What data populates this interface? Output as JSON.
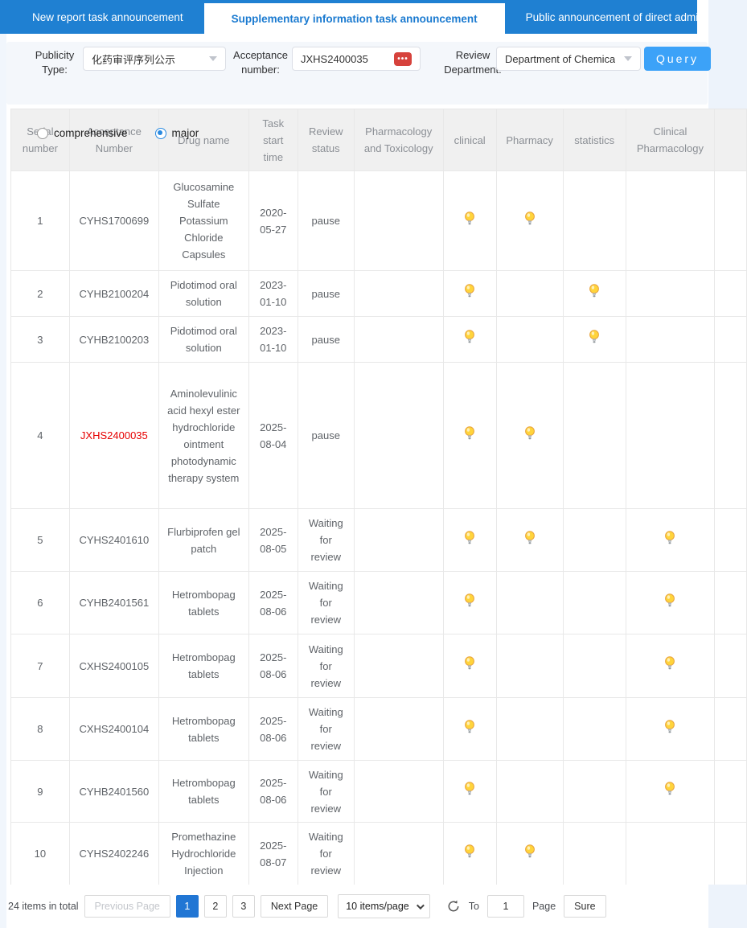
{
  "tabs": [
    {
      "label": "New report task announcement",
      "active": false
    },
    {
      "label": "Supplementary information task announcement",
      "active": true
    },
    {
      "label": "Public announcement of direct administration",
      "active": false
    }
  ],
  "filters": {
    "publicity_type_label": "Publicity Type:",
    "publicity_type_value": "化药审评序列公示",
    "acceptance_label": "Acceptance number:",
    "acceptance_value": "JXHS2400035",
    "clear_icon_dots": "•••",
    "review_dept_label": "Review Department:",
    "review_dept_value": "Department of Chemica",
    "query_label": "Query",
    "radios": [
      {
        "label": "comprehensive",
        "selected": false
      },
      {
        "label": "major",
        "selected": true
      }
    ]
  },
  "table": {
    "headers": [
      "Serial number",
      "Acceptance Number",
      "Drug name",
      "Task start time",
      "Review status",
      "Pharmacology and Toxicology",
      "clinical",
      "Pharmacy",
      "statistics",
      "Clinical Pharmacology"
    ],
    "rows": [
      {
        "serial": "1",
        "acceptance": "CYHS1700699",
        "red": false,
        "drug": "Glucosamine Sulfate Potassium Chloride Capsules",
        "start": "2020-05-27",
        "status": "pause",
        "bulbs": {
          "pharm_tox": false,
          "clinical": true,
          "pharmacy": true,
          "statistics": false,
          "clinical_pharmacology": false
        }
      },
      {
        "serial": "2",
        "acceptance": "CYHB2100204",
        "red": false,
        "drug": "Pidotimod oral solution",
        "start": "2023-01-10",
        "status": "pause",
        "bulbs": {
          "pharm_tox": false,
          "clinical": true,
          "pharmacy": false,
          "statistics": true,
          "clinical_pharmacology": false
        }
      },
      {
        "serial": "3",
        "acceptance": "CYHB2100203",
        "red": false,
        "drug": "Pidotimod oral solution",
        "start": "2023-01-10",
        "status": "pause",
        "bulbs": {
          "pharm_tox": false,
          "clinical": true,
          "pharmacy": false,
          "statistics": true,
          "clinical_pharmacology": false
        }
      },
      {
        "serial": "4",
        "acceptance": "JXHS2400035",
        "red": true,
        "drug": "Aminolevulinic acid hexyl ester hydrochloride ointment photodynamic therapy system",
        "start": "2025-08-04",
        "status": "pause",
        "bulbs": {
          "pharm_tox": false,
          "clinical": true,
          "pharmacy": true,
          "statistics": false,
          "clinical_pharmacology": false
        }
      },
      {
        "serial": "5",
        "acceptance": "CYHS2401610",
        "red": false,
        "drug": "Flurbiprofen gel patch",
        "start": "2025-08-05",
        "status": "Waiting for review",
        "bulbs": {
          "pharm_tox": false,
          "clinical": true,
          "pharmacy": true,
          "statistics": false,
          "clinical_pharmacology": true
        }
      },
      {
        "serial": "6",
        "acceptance": "CYHB2401561",
        "red": false,
        "drug": "Hetrombopag tablets",
        "start": "2025-08-06",
        "status": "Waiting for review",
        "bulbs": {
          "pharm_tox": false,
          "clinical": true,
          "pharmacy": false,
          "statistics": false,
          "clinical_pharmacology": true
        }
      },
      {
        "serial": "7",
        "acceptance": "CXHS2400105",
        "red": false,
        "drug": "Hetrombopag tablets",
        "start": "2025-08-06",
        "status": "Waiting for review",
        "bulbs": {
          "pharm_tox": false,
          "clinical": true,
          "pharmacy": false,
          "statistics": false,
          "clinical_pharmacology": true
        }
      },
      {
        "serial": "8",
        "acceptance": "CXHS2400104",
        "red": false,
        "drug": "Hetrombopag tablets",
        "start": "2025-08-06",
        "status": "Waiting for review",
        "bulbs": {
          "pharm_tox": false,
          "clinical": true,
          "pharmacy": false,
          "statistics": false,
          "clinical_pharmacology": true
        }
      },
      {
        "serial": "9",
        "acceptance": "CYHB2401560",
        "red": false,
        "drug": "Hetrombopag tablets",
        "start": "2025-08-06",
        "status": "Waiting for review",
        "bulbs": {
          "pharm_tox": false,
          "clinical": true,
          "pharmacy": false,
          "statistics": false,
          "clinical_pharmacology": true
        }
      },
      {
        "serial": "10",
        "acceptance": "CYHS2402246",
        "red": false,
        "drug": "Promethazine Hydrochloride Injection",
        "start": "2025-08-07",
        "status": "Waiting for review",
        "bulbs": {
          "pharm_tox": false,
          "clinical": true,
          "pharmacy": true,
          "statistics": false,
          "clinical_pharmacology": false
        }
      }
    ]
  },
  "pagination": {
    "total": "24 items in total",
    "prev": "Previous Page",
    "pages": [
      "1",
      "2",
      "3"
    ],
    "active_page": "1",
    "next": "Next Page",
    "page_size": "10 items/page",
    "to_label": "To",
    "goto_value": "1",
    "page_label": "Page",
    "sure_label": "Sure"
  },
  "colors": {
    "tab_bar": "#1f80d2",
    "active_tab_text": "#1a7ad0",
    "query_button": "#3ca2f8",
    "active_page": "#2176d4",
    "highlight_red": "#e60000",
    "bulb_yellow": "#ffd43b",
    "panel_bg": "#f4f7fb",
    "header_bg": "#f0f0f0",
    "side_strip": "#edf3fb"
  }
}
